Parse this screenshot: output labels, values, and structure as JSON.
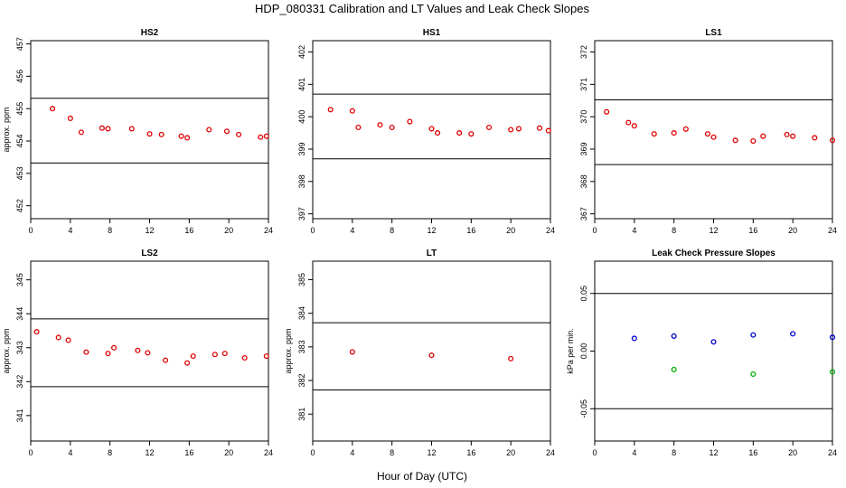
{
  "title": "HDP_080331  Calibration and LT Values and Leak Check Slopes",
  "xlabel": "Hour of Day (UTC)",
  "colors": {
    "red": "#e00000",
    "blue": "#0000cc",
    "green": "#00b000"
  },
  "chart_data": [
    {
      "type": "scatter",
      "title": "HS2",
      "ylabel": "approx. ppm",
      "xlim": [
        0,
        24
      ],
      "xticks": [
        0,
        4,
        8,
        12,
        16,
        20,
        24
      ],
      "ylim": [
        451.6,
        457.1
      ],
      "yticks": [
        452,
        453,
        454,
        455,
        456,
        457
      ],
      "hlines": [
        455.32,
        453.32
      ],
      "series": [
        {
          "name": "HS2",
          "color": "red",
          "x": [
            2.2,
            4.0,
            5.1,
            7.2,
            7.8,
            10.2,
            12.0,
            13.2,
            15.2,
            15.8,
            18.0,
            19.8,
            21.0,
            23.2,
            23.8
          ],
          "y": [
            455.0,
            454.7,
            454.27,
            454.4,
            454.38,
            454.38,
            454.22,
            454.2,
            454.15,
            454.1,
            454.35,
            454.3,
            454.2,
            454.12,
            454.15
          ]
        }
      ]
    },
    {
      "type": "scatter",
      "title": "HS1",
      "ylabel": "",
      "xlim": [
        0,
        24
      ],
      "xticks": [
        0,
        4,
        8,
        12,
        16,
        20,
        24
      ],
      "ylim": [
        396.85,
        402.35
      ],
      "yticks": [
        397,
        398,
        399,
        400,
        401,
        402
      ],
      "hlines": [
        400.7,
        398.7
      ],
      "series": [
        {
          "name": "HS1",
          "color": "red",
          "x": [
            1.8,
            4.0,
            4.6,
            6.8,
            8.0,
            9.8,
            12.0,
            12.6,
            14.8,
            16.0,
            17.8,
            20.0,
            20.8,
            22.9,
            23.8
          ],
          "y": [
            400.22,
            400.18,
            399.67,
            399.75,
            399.67,
            399.85,
            399.63,
            399.5,
            399.5,
            399.47,
            399.67,
            399.6,
            399.63,
            399.65,
            399.57
          ]
        }
      ]
    },
    {
      "type": "scatter",
      "title": "LS1",
      "ylabel": "",
      "xlim": [
        0,
        24
      ],
      "xticks": [
        0,
        4,
        8,
        12,
        16,
        20,
        24
      ],
      "ylim": [
        366.85,
        372.35
      ],
      "yticks": [
        367,
        368,
        369,
        370,
        371,
        372
      ],
      "hlines": [
        370.52,
        368.52
      ],
      "series": [
        {
          "name": "LS1",
          "color": "red",
          "x": [
            1.2,
            3.4,
            4.0,
            6.0,
            8.0,
            9.2,
            11.4,
            12.0,
            14.2,
            16.0,
            17.0,
            19.4,
            20.0,
            22.2,
            24.0
          ],
          "y": [
            370.15,
            369.82,
            369.72,
            369.47,
            369.5,
            369.62,
            369.47,
            369.37,
            369.27,
            369.25,
            369.4,
            369.45,
            369.4,
            369.35,
            369.27
          ]
        }
      ]
    },
    {
      "type": "scatter",
      "title": "LS2",
      "ylabel": "approx. ppm",
      "xlim": [
        0,
        24
      ],
      "xticks": [
        0,
        4,
        8,
        12,
        16,
        20,
        24
      ],
      "ylim": [
        340.25,
        345.55
      ],
      "yticks": [
        341,
        342,
        343,
        344,
        345
      ],
      "hlines": [
        343.85,
        341.85
      ],
      "series": [
        {
          "name": "LS2",
          "color": "red",
          "x": [
            0.6,
            2.8,
            3.8,
            5.6,
            7.8,
            8.4,
            10.8,
            11.8,
            13.6,
            15.8,
            16.4,
            18.6,
            19.6,
            21.6,
            23.8
          ],
          "y": [
            343.47,
            343.3,
            343.22,
            342.87,
            342.83,
            343.0,
            342.92,
            342.85,
            342.63,
            342.55,
            342.75,
            342.8,
            342.83,
            342.7,
            342.75
          ]
        }
      ]
    },
    {
      "type": "scatter",
      "title": "LT",
      "ylabel": "approx. ppm",
      "xlim": [
        0,
        24
      ],
      "xticks": [
        0,
        4,
        8,
        12,
        16,
        20,
        24
      ],
      "ylim": [
        380.2,
        385.55
      ],
      "yticks": [
        381,
        382,
        383,
        384,
        385
      ],
      "hlines": [
        383.72,
        381.72
      ],
      "series": [
        {
          "name": "LT",
          "color": "red",
          "x": [
            4.0,
            12.0,
            20.0
          ],
          "y": [
            382.85,
            382.75,
            382.65
          ]
        }
      ]
    },
    {
      "type": "scatter",
      "title": "Leak Check Pressure Slopes",
      "ylabel": "kPa per min.",
      "xlim": [
        0,
        24
      ],
      "xticks": [
        0,
        4,
        8,
        12,
        16,
        20,
        24
      ],
      "ylim": [
        -0.078,
        0.078
      ],
      "yticks": [
        -0.05,
        0.0,
        0.05
      ],
      "ytick_labels": [
        "-0.05",
        "0.00",
        "0.05"
      ],
      "hlines": [
        0.05,
        -0.05
      ],
      "series": [
        {
          "name": "blue",
          "color": "blue",
          "x": [
            4.0,
            8.0,
            12.0,
            16.0,
            20.0,
            24.0
          ],
          "y": [
            0.011,
            0.013,
            0.008,
            0.014,
            0.015,
            0.012
          ]
        },
        {
          "name": "green",
          "color": "green",
          "x": [
            8.0,
            16.0,
            24.0
          ],
          "y": [
            -0.016,
            -0.02,
            -0.018
          ]
        }
      ]
    }
  ]
}
